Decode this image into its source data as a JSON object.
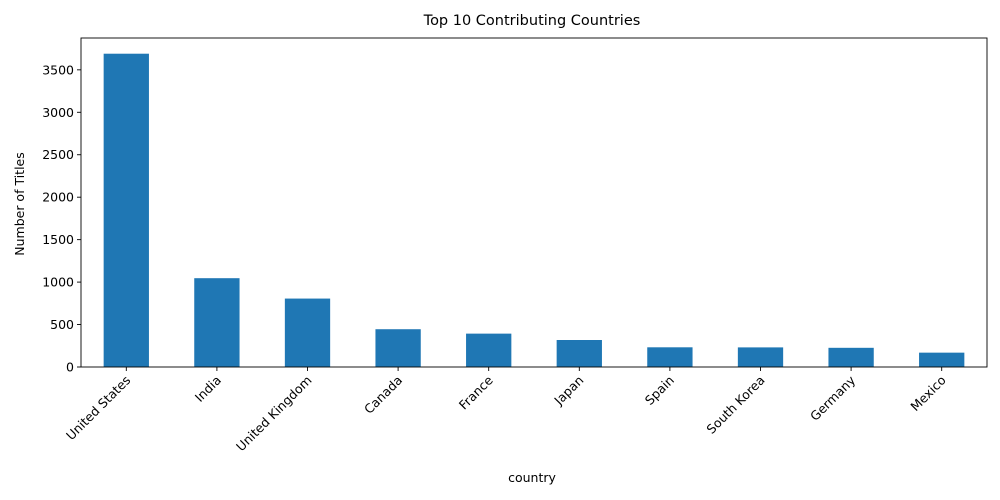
{
  "chart_data": {
    "type": "bar",
    "title": "Top 10 Contributing Countries",
    "xlabel": "country",
    "ylabel": "Number of Titles",
    "categories": [
      "United States",
      "India",
      "United Kingdom",
      "Canada",
      "France",
      "Japan",
      "Spain",
      "South Korea",
      "Germany",
      "Mexico"
    ],
    "values": [
      3690,
      1046,
      806,
      445,
      393,
      318,
      232,
      231,
      226,
      169
    ],
    "ylim": [
      0,
      3875
    ],
    "yticks": [
      0,
      500,
      1000,
      1500,
      2000,
      2500,
      3000,
      3500
    ],
    "bar_color": "#1f77b4",
    "grid": false,
    "legend": "none"
  }
}
